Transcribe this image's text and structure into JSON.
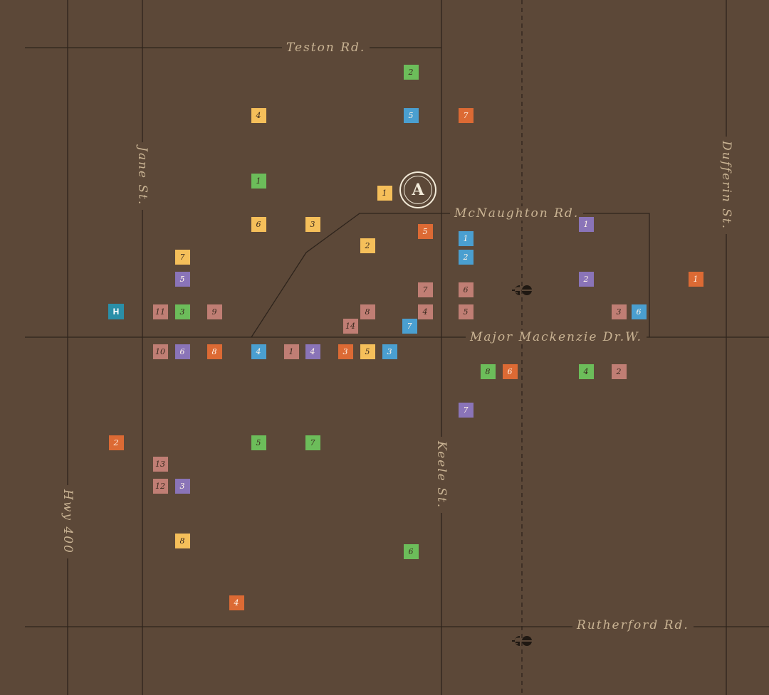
{
  "roads": {
    "teston": "Teston Rd.",
    "mcnaughton": "McNaughton Rd.",
    "major_mackenzie": "Major Mackenzie Dr.W.",
    "rutherford": "Rutherford Rd.",
    "jane": "Jane St.",
    "keele": "Keele St.",
    "dufferin": "Dufferin St.",
    "hwy400": "Hwy 400"
  },
  "site_marker": {
    "label": "A"
  },
  "hospital": {
    "label": "H"
  },
  "colors": {
    "background": "#5c4838",
    "road_line": "#2e241c",
    "label": "#c9b393",
    "yellow": "#f5bf5a",
    "green": "#6cbd5a",
    "blue": "#4a9fd0",
    "orange": "#dc6a34",
    "purple": "#8a74b8",
    "pink": "#c07e74",
    "hospital": "#2a8fa8"
  },
  "markers": [
    {
      "label": "2",
      "color": "green"
    },
    {
      "label": "4",
      "color": "yellow"
    },
    {
      "label": "5",
      "color": "blue"
    },
    {
      "label": "7",
      "color": "orange"
    },
    {
      "label": "1",
      "color": "green"
    },
    {
      "label": "1",
      "color": "yellow"
    },
    {
      "label": "6",
      "color": "yellow"
    },
    {
      "label": "3",
      "color": "yellow"
    },
    {
      "label": "5",
      "color": "orange"
    },
    {
      "label": "1",
      "color": "blue"
    },
    {
      "label": "1",
      "color": "purple"
    },
    {
      "label": "2",
      "color": "yellow"
    },
    {
      "label": "2",
      "color": "blue"
    },
    {
      "label": "7",
      "color": "yellow"
    },
    {
      "label": "5",
      "color": "purple"
    },
    {
      "label": "2",
      "color": "purple"
    },
    {
      "label": "1",
      "color": "orange"
    },
    {
      "label": "7",
      "color": "pink"
    },
    {
      "label": "6",
      "color": "pink"
    },
    {
      "label": "11",
      "color": "pink"
    },
    {
      "label": "3",
      "color": "green"
    },
    {
      "label": "9",
      "color": "pink"
    },
    {
      "label": "8",
      "color": "pink"
    },
    {
      "label": "4",
      "color": "pink"
    },
    {
      "label": "5",
      "color": "pink"
    },
    {
      "label": "3",
      "color": "pink"
    },
    {
      "label": "6",
      "color": "blue"
    },
    {
      "label": "14",
      "color": "pink"
    },
    {
      "label": "7",
      "color": "blue"
    },
    {
      "label": "10",
      "color": "pink"
    },
    {
      "label": "6",
      "color": "purple"
    },
    {
      "label": "8",
      "color": "orange"
    },
    {
      "label": "4",
      "color": "blue"
    },
    {
      "label": "1",
      "color": "pink"
    },
    {
      "label": "4",
      "color": "purple"
    },
    {
      "label": "3",
      "color": "orange"
    },
    {
      "label": "5",
      "color": "yellow"
    },
    {
      "label": "3",
      "color": "blue"
    },
    {
      "label": "8",
      "color": "green"
    },
    {
      "label": "6",
      "color": "orange"
    },
    {
      "label": "4",
      "color": "green"
    },
    {
      "label": "2",
      "color": "pink"
    },
    {
      "label": "7",
      "color": "purple"
    },
    {
      "label": "2",
      "color": "orange"
    },
    {
      "label": "5",
      "color": "green"
    },
    {
      "label": "7",
      "color": "green"
    },
    {
      "label": "13",
      "color": "pink"
    },
    {
      "label": "12",
      "color": "pink"
    },
    {
      "label": "3",
      "color": "purple"
    },
    {
      "label": "8",
      "color": "yellow"
    },
    {
      "label": "6",
      "color": "green"
    },
    {
      "label": "4",
      "color": "orange"
    }
  ]
}
